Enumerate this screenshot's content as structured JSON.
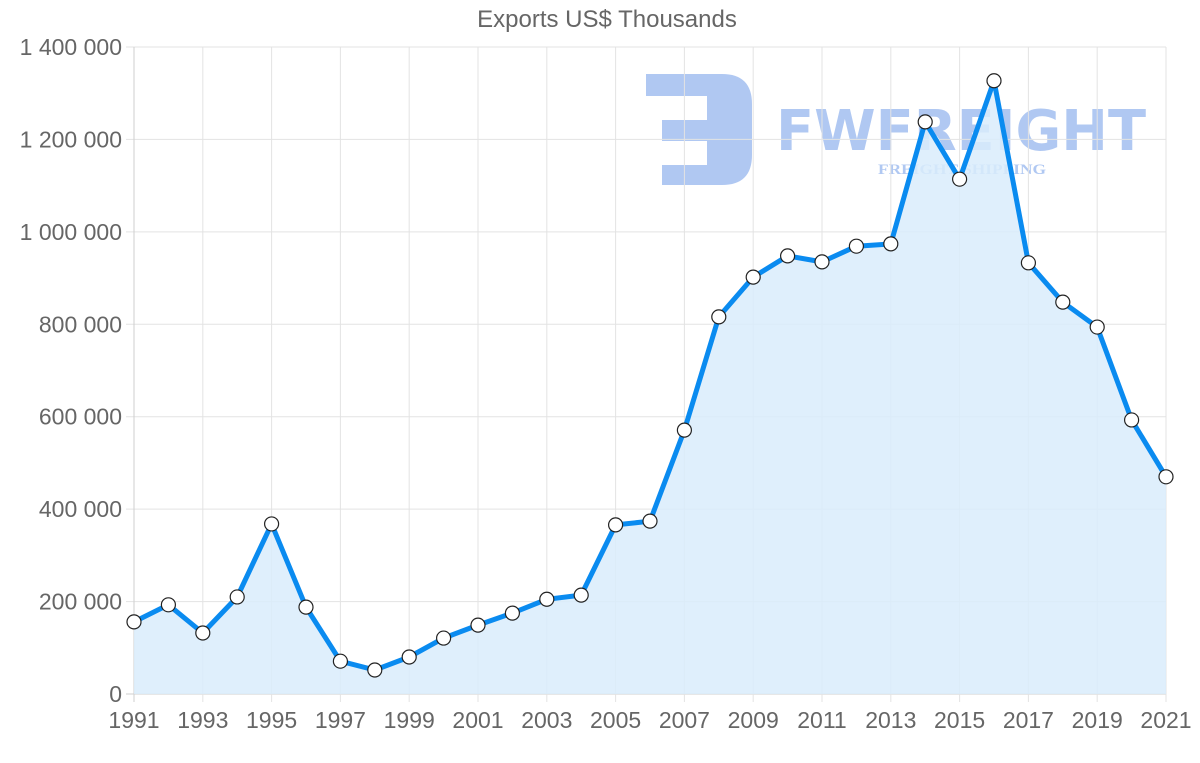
{
  "chart_data": {
    "type": "line",
    "title": "Exports US$ Thousands",
    "xlabel": "",
    "ylabel": "",
    "x": [
      1991,
      1992,
      1993,
      1994,
      1995,
      1996,
      1997,
      1998,
      1999,
      2000,
      2001,
      2002,
      2003,
      2004,
      2005,
      2006,
      2007,
      2008,
      2009,
      2010,
      2011,
      2012,
      2013,
      2014,
      2015,
      2016,
      2017,
      2018,
      2019,
      2020,
      2021
    ],
    "series": [
      {
        "name": "Exports US$ Thousands",
        "values": [
          156000,
          193000,
          132000,
          210000,
          368000,
          188000,
          71000,
          52000,
          80000,
          121000,
          149000,
          175000,
          205000,
          214000,
          366000,
          374000,
          571000,
          816000,
          902000,
          948000,
          935000,
          969000,
          974000,
          1238000,
          1114000,
          1327000,
          933000,
          848000,
          794000,
          593000,
          470000
        ],
        "color": "#0a8bf0",
        "fill": "#d9ecfc",
        "filled_area": true
      }
    ],
    "x_tick_labels": [
      "1991",
      "1993",
      "1995",
      "1997",
      "1999",
      "2001",
      "2003",
      "2005",
      "2007",
      "2009",
      "2011",
      "2013",
      "2015",
      "2017",
      "2019",
      "2021"
    ],
    "y_tick_labels": [
      "0",
      "200 000",
      "400 000",
      "600 000",
      "800 000",
      "1 000 000",
      "1 200 000",
      "1 400 000"
    ],
    "y_ticks": [
      0,
      200000,
      400000,
      600000,
      800000,
      1000000,
      1200000,
      1400000
    ],
    "ylim": [
      0,
      1400000
    ],
    "xlim": [
      1991,
      2021
    ],
    "grid": true,
    "legend": null
  },
  "watermark": {
    "brand": "FWFREIGHT",
    "tagline": "FREIGHT SHIPPING",
    "color": "#6f9be8"
  }
}
